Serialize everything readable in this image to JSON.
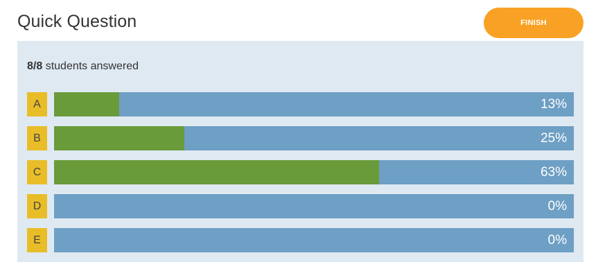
{
  "header": {
    "title": "Quick Question",
    "finish_label": "FINISH"
  },
  "summary": {
    "count": "8/8",
    "text": " students answered"
  },
  "answers": [
    {
      "letter": "A",
      "percent_label": "13%",
      "fraction": 0.125
    },
    {
      "letter": "B",
      "percent_label": "25%",
      "fraction": 0.25
    },
    {
      "letter": "C",
      "percent_label": "63%",
      "fraction": 0.625
    },
    {
      "letter": "D",
      "percent_label": "0%",
      "fraction": 0
    },
    {
      "letter": "E",
      "percent_label": "0%",
      "fraction": 0
    }
  ],
  "colors": {
    "finish_button": "#f9a125",
    "panel_bg": "#dfe9f2",
    "letter_badge": "#e8bd28",
    "bar_bg": "#6e9fc4",
    "bar_fill": "#6a9b3a"
  }
}
